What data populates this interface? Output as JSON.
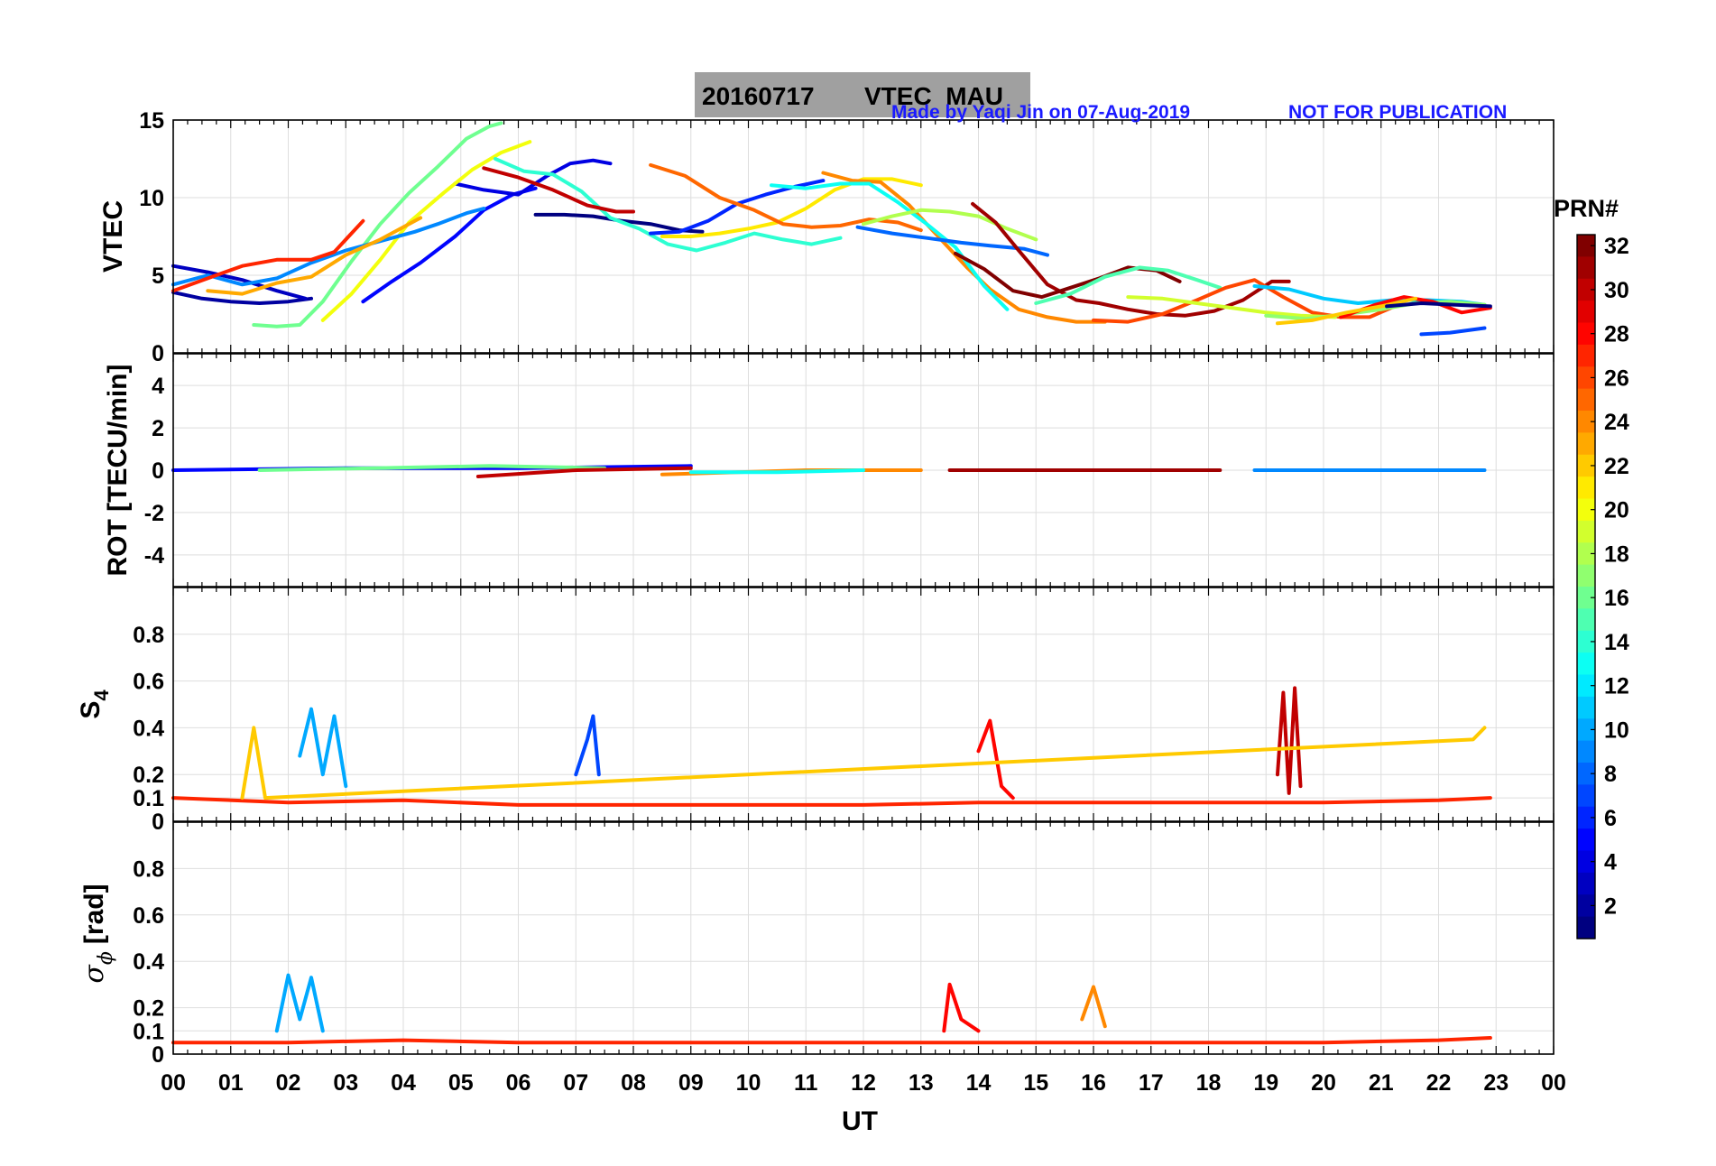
{
  "title": {
    "date": "20160717",
    "label": "VTEC  MAU",
    "author_note": "Made by Yaqi Jin on 07-Aug-2019",
    "pub_note": "NOT FOR PUBLICATION",
    "note_color": "#1a1aff",
    "box_color": "#a0a0a0"
  },
  "x_axis": {
    "label": "UT",
    "ticks": [
      "00",
      "01",
      "02",
      "03",
      "04",
      "05",
      "06",
      "07",
      "08",
      "09",
      "10",
      "11",
      "12",
      "13",
      "14",
      "15",
      "16",
      "17",
      "18",
      "19",
      "20",
      "21",
      "22",
      "23",
      "00"
    ],
    "range": [
      0,
      24
    ]
  },
  "colorbar": {
    "label": "PRN#",
    "ticks": [
      "32",
      "30",
      "28",
      "26",
      "24",
      "22",
      "20",
      "18",
      "16",
      "14",
      "12",
      "10",
      "8",
      "6",
      "4",
      "2"
    ],
    "range": [
      1,
      32
    ],
    "colormap": "jet"
  },
  "panels": [
    {
      "id": "vtec",
      "ylabel": "VTEC",
      "ylim": [
        0,
        15
      ],
      "yticks": [
        "0",
        "5",
        "10",
        "15"
      ],
      "ytick_values": [
        0,
        5,
        10,
        15
      ]
    },
    {
      "id": "rot",
      "ylabel": "ROT [TECU/min]",
      "ylim": [
        -5.5,
        5.5
      ],
      "yticks": [
        "-4",
        "-2",
        "0",
        "2",
        "4"
      ],
      "ytick_values": [
        -4,
        -2,
        0,
        2,
        4
      ]
    },
    {
      "id": "s4",
      "ylabel_main": "S",
      "ylabel_sub": "4",
      "ylim": [
        0,
        1
      ],
      "yticks": [
        "0",
        "0.1",
        "0.2",
        "0.4",
        "0.6",
        "0.8"
      ],
      "ytick_values": [
        0,
        0.1,
        0.2,
        0.4,
        0.6,
        0.8
      ]
    },
    {
      "id": "sigma",
      "ylabel_main": "σ",
      "ylabel_sub": "ϕ",
      "ylabel_unit": "[rad]",
      "ylim": [
        0,
        1
      ],
      "yticks": [
        "0",
        "0.1",
        "0.2",
        "0.4",
        "0.6",
        "0.8"
      ],
      "ytick_values": [
        0,
        0.1,
        0.2,
        0.4,
        0.6,
        0.8
      ]
    }
  ],
  "chart_data": {
    "type": "line",
    "title": "20160717    VTEC  MAU",
    "xlabel": "UT",
    "xlim": [
      0,
      24
    ],
    "series": [
      {
        "name": "2",
        "panel": "vtec",
        "x": [
          0.0,
          0.5,
          1.0,
          1.5,
          2.0,
          2.4
        ],
        "y": [
          3.9,
          3.5,
          3.3,
          3.2,
          3.3,
          3.5
        ]
      },
      {
        "name": "3",
        "panel": "vtec",
        "x": [
          0.0,
          0.6,
          1.2,
          1.8,
          2.3
        ],
        "y": [
          5.6,
          5.2,
          4.7,
          4.0,
          3.5
        ]
      },
      {
        "name": "5",
        "panel": "vtec",
        "x": [
          3.3,
          3.8,
          4.3,
          4.9,
          5.4,
          5.9,
          6.3
        ],
        "y": [
          3.3,
          4.6,
          5.8,
          7.5,
          9.2,
          10.2,
          10.6
        ]
      },
      {
        "name": "4",
        "panel": "vtec",
        "x": [
          4.9,
          5.4,
          6.0,
          6.5,
          6.9,
          7.3,
          7.6
        ],
        "y": [
          10.9,
          10.5,
          10.2,
          11.4,
          12.2,
          12.4,
          12.2
        ]
      },
      {
        "name": "1",
        "panel": "vtec",
        "x": [
          6.3,
          6.8,
          7.3,
          7.8,
          8.3,
          8.8,
          9.2
        ],
        "y": [
          8.9,
          8.9,
          8.8,
          8.5,
          8.3,
          7.9,
          7.8
        ]
      },
      {
        "name": "20",
        "panel": "vtec",
        "x": [
          2.6,
          3.1,
          3.6,
          4.1,
          4.7,
          5.2,
          5.7,
          6.2
        ],
        "y": [
          2.1,
          3.8,
          6.0,
          8.4,
          10.3,
          11.8,
          12.9,
          13.6
        ]
      },
      {
        "name": "16",
        "panel": "vtec",
        "x": [
          1.4,
          1.8,
          2.2,
          2.6,
          3.1,
          3.6,
          4.1,
          4.6,
          5.1,
          5.5,
          5.7
        ],
        "y": [
          1.8,
          1.7,
          1.8,
          3.3,
          5.9,
          8.3,
          10.3,
          12.0,
          13.8,
          14.6,
          14.8
        ]
      },
      {
        "name": "9",
        "panel": "vtec",
        "x": [
          0.0,
          0.6,
          1.2,
          1.8,
          2.4,
          3.0,
          3.6,
          4.2,
          4.6,
          5.1,
          5.4
        ],
        "y": [
          4.4,
          5.0,
          4.4,
          4.8,
          5.8,
          6.6,
          7.2,
          7.8,
          8.3,
          9.0,
          9.3
        ]
      },
      {
        "name": "27",
        "panel": "vtec",
        "x": [
          0.0,
          0.6,
          1.2,
          1.8,
          2.4,
          2.8,
          3.3
        ],
        "y": [
          4.0,
          4.8,
          5.6,
          6.0,
          6.0,
          6.5,
          8.5
        ]
      },
      {
        "name": "23",
        "panel": "vtec",
        "x": [
          0.6,
          1.2,
          1.8,
          2.4,
          3.0,
          3.6,
          4.3
        ],
        "y": [
          4.0,
          3.8,
          4.5,
          4.9,
          6.3,
          7.3,
          8.7
        ]
      },
      {
        "name": "14",
        "panel": "vtec",
        "x": [
          5.6,
          6.1,
          6.6,
          7.1,
          7.6,
          8.1,
          8.6,
          9.1,
          9.6,
          10.1,
          10.6,
          11.1,
          11.6
        ],
        "y": [
          12.5,
          11.7,
          11.5,
          10.4,
          8.7,
          8.0,
          7.0,
          6.6,
          7.1,
          7.7,
          7.3,
          7.0,
          7.4
        ]
      },
      {
        "name": "30",
        "panel": "vtec",
        "x": [
          5.4,
          6.0,
          6.6,
          7.2,
          7.7,
          8.0
        ],
        "y": [
          11.9,
          11.3,
          10.5,
          9.5,
          9.1,
          9.1
        ]
      },
      {
        "name": "21",
        "panel": "vtec",
        "x": [
          8.5,
          9.0,
          9.5,
          10.0,
          10.5,
          11.0,
          11.5,
          12.0,
          12.5,
          13.0
        ],
        "y": [
          7.5,
          7.5,
          7.7,
          8.0,
          8.4,
          9.3,
          10.5,
          11.2,
          11.2,
          10.8
        ]
      },
      {
        "name": "6",
        "panel": "vtec",
        "x": [
          8.3,
          8.8,
          9.3,
          9.8,
          10.3,
          10.8,
          11.3
        ],
        "y": [
          7.7,
          7.8,
          8.5,
          9.6,
          10.2,
          10.7,
          11.1
        ]
      },
      {
        "name": "25",
        "panel": "vtec",
        "x": [
          8.3,
          8.9,
          9.5,
          10.1,
          10.6,
          11.1,
          11.6,
          12.1,
          12.6,
          13.0
        ],
        "y": [
          12.1,
          11.4,
          10.0,
          9.2,
          8.3,
          8.1,
          8.2,
          8.6,
          8.4,
          7.9
        ]
      },
      {
        "name": "24",
        "panel": "vtec",
        "x": [
          11.3,
          11.8,
          12.3,
          12.8,
          13.3,
          13.8,
          14.2,
          14.7,
          15.2,
          15.7,
          16.2
        ],
        "y": [
          11.6,
          11.1,
          11.0,
          9.5,
          7.5,
          5.5,
          4.1,
          2.8,
          2.3,
          2.0,
          2.0
        ]
      },
      {
        "name": "13",
        "panel": "vtec",
        "x": [
          10.4,
          11.0,
          11.6,
          12.1,
          12.6,
          13.1,
          13.6,
          14.1,
          14.5
        ],
        "y": [
          10.8,
          10.6,
          10.9,
          10.9,
          9.7,
          8.3,
          6.8,
          4.3,
          2.8
        ]
      },
      {
        "name": "8",
        "panel": "vtec",
        "x": [
          11.9,
          12.5,
          13.1,
          13.7,
          14.2,
          14.8,
          15.2
        ],
        "y": [
          8.1,
          7.7,
          7.4,
          7.1,
          6.9,
          6.7,
          6.3
        ]
      },
      {
        "name": "18",
        "panel": "vtec",
        "x": [
          12.0,
          12.5,
          13.0,
          13.5,
          14.0,
          14.5,
          15.0
        ],
        "y": [
          8.3,
          8.8,
          9.2,
          9.1,
          8.8,
          8.0,
          7.3
        ]
      },
      {
        "name": "31",
        "panel": "vtec",
        "x": [
          13.9,
          14.3,
          14.7,
          15.2,
          15.7,
          16.1,
          16.6,
          17.1,
          17.6,
          18.1,
          18.6,
          19.1,
          19.4
        ],
        "y": [
          9.6,
          8.4,
          6.6,
          4.4,
          3.4,
          3.2,
          2.8,
          2.5,
          2.4,
          2.7,
          3.4,
          4.6,
          4.6
        ]
      },
      {
        "name": "32",
        "panel": "vtec",
        "x": [
          13.6,
          14.1,
          14.6,
          15.1,
          15.6,
          16.1,
          16.6,
          17.1,
          17.5
        ],
        "y": [
          6.4,
          5.4,
          4.0,
          3.6,
          4.2,
          4.8,
          5.5,
          5.3,
          4.6
        ]
      },
      {
        "name": "15",
        "panel": "vtec",
        "x": [
          15.0,
          15.6,
          16.2,
          16.8,
          17.3,
          17.8,
          18.2
        ],
        "y": [
          3.2,
          3.8,
          4.9,
          5.5,
          5.3,
          4.7,
          4.2
        ]
      },
      {
        "name": "26",
        "panel": "vtec",
        "x": [
          16.0,
          16.6,
          17.2,
          17.8,
          18.3,
          18.8,
          19.3,
          19.8,
          20.3,
          20.8,
          21.3
        ],
        "y": [
          2.1,
          2.0,
          2.5,
          3.4,
          4.2,
          4.7,
          3.6,
          2.6,
          2.3,
          2.3,
          3.1
        ]
      },
      {
        "name": "19",
        "panel": "vtec",
        "x": [
          16.6,
          17.2,
          17.8,
          18.4,
          19.0,
          19.6,
          20.2
        ],
        "y": [
          3.6,
          3.5,
          3.2,
          2.9,
          2.6,
          2.4,
          2.3
        ]
      },
      {
        "name": "11",
        "panel": "vtec",
        "x": [
          18.8,
          19.4,
          20.0,
          20.6,
          21.2,
          21.8,
          22.4,
          22.8
        ],
        "y": [
          4.3,
          4.1,
          3.5,
          3.2,
          3.4,
          3.4,
          3.3,
          3.1
        ]
      },
      {
        "name": "17",
        "panel": "vtec",
        "x": [
          19.0,
          19.7,
          20.4,
          21.0,
          21.6,
          22.2,
          22.8
        ],
        "y": [
          2.4,
          2.2,
          2.5,
          2.8,
          3.2,
          3.3,
          3.1
        ]
      },
      {
        "name": "7",
        "panel": "vtec",
        "x": [
          21.7,
          22.2,
          22.8
        ],
        "y": [
          1.2,
          1.3,
          1.6
        ]
      },
      {
        "name": "28",
        "panel": "vtec",
        "x": [
          20.3,
          20.9,
          21.4,
          21.9,
          22.4,
          22.9
        ],
        "y": [
          2.3,
          3.1,
          3.6,
          3.3,
          2.6,
          2.9
        ]
      },
      {
        "name": "22",
        "panel": "vtec",
        "x": [
          19.2,
          19.8,
          20.4,
          21.0,
          21.6
        ],
        "y": [
          1.9,
          2.1,
          2.6,
          3.0,
          3.5
        ]
      },
      {
        "name": "1",
        "panel": "vtec",
        "x": [
          21.1,
          21.7,
          22.3,
          22.9
        ],
        "y": [
          3.0,
          3.2,
          3.1,
          3.0
        ]
      },
      {
        "name": "5",
        "panel": "rot",
        "x": [
          0.0,
          3.0,
          6.0,
          9.0
        ],
        "y": [
          0.0,
          0.1,
          0.1,
          0.2
        ]
      },
      {
        "name": "16",
        "panel": "rot",
        "x": [
          1.5,
          3.5,
          5.5,
          7.5
        ],
        "y": [
          0.0,
          0.1,
          0.2,
          0.1
        ]
      },
      {
        "name": "30",
        "panel": "rot",
        "x": [
          5.3,
          7.0,
          9.0
        ],
        "y": [
          -0.3,
          0.0,
          0.1
        ]
      },
      {
        "name": "24",
        "panel": "rot",
        "x": [
          8.5,
          11.0,
          13.0
        ],
        "y": [
          -0.2,
          0.0,
          0.0
        ]
      },
      {
        "name": "13",
        "panel": "rot",
        "x": [
          9.0,
          10.5,
          12.0
        ],
        "y": [
          -0.1,
          -0.1,
          0.0
        ]
      },
      {
        "name": "31",
        "panel": "rot",
        "x": [
          13.5,
          16.0,
          18.2
        ],
        "y": [
          0.0,
          0.0,
          0.0
        ]
      },
      {
        "name": "9",
        "panel": "rot",
        "x": [
          18.8,
          20.5,
          22.8
        ],
        "y": [
          0.0,
          0.0,
          0.0
        ]
      },
      {
        "name": "27",
        "panel": "s4",
        "x": [
          0.0,
          2.0,
          4.0,
          6.0,
          8.0,
          10.0,
          12.0,
          14.0,
          16.0,
          18.0,
          20.0,
          22.0,
          22.9
        ],
        "y": [
          0.1,
          0.08,
          0.09,
          0.07,
          0.07,
          0.07,
          0.07,
          0.08,
          0.08,
          0.08,
          0.08,
          0.09,
          0.1
        ]
      },
      {
        "name": "10",
        "panel": "s4",
        "x": [
          2.2,
          2.4,
          2.6,
          2.8,
          3.0
        ],
        "y": [
          0.28,
          0.48,
          0.2,
          0.45,
          0.15
        ]
      },
      {
        "name": "7",
        "panel": "s4",
        "x": [
          7.0,
          7.2,
          7.3,
          7.4
        ],
        "y": [
          0.2,
          0.35,
          0.45,
          0.2
        ]
      },
      {
        "name": "30",
        "panel": "s4",
        "x": [
          19.2,
          19.3,
          19.4,
          19.5,
          19.6
        ],
        "y": [
          0.2,
          0.55,
          0.12,
          0.57,
          0.15
        ]
      },
      {
        "name": "28",
        "panel": "s4",
        "x": [
          14.0,
          14.2,
          14.4,
          14.6
        ],
        "y": [
          0.3,
          0.43,
          0.15,
          0.1
        ]
      },
      {
        "name": "22",
        "panel": "s4",
        "x": [
          1.2,
          1.4,
          1.6,
          22.6,
          22.8
        ],
        "y": [
          0.1,
          0.4,
          0.1,
          0.35,
          0.4
        ]
      },
      {
        "name": "27",
        "panel": "sigma",
        "x": [
          0.0,
          2.0,
          4.0,
          6.0,
          8.0,
          10.0,
          12.0,
          14.0,
          16.0,
          18.0,
          20.0,
          22.0,
          22.9
        ],
        "y": [
          0.05,
          0.05,
          0.06,
          0.05,
          0.05,
          0.05,
          0.05,
          0.05,
          0.05,
          0.05,
          0.05,
          0.06,
          0.07
        ]
      },
      {
        "name": "10",
        "panel": "sigma",
        "x": [
          1.8,
          2.0,
          2.2,
          2.4,
          2.6
        ],
        "y": [
          0.1,
          0.34,
          0.15,
          0.33,
          0.1
        ]
      },
      {
        "name": "28",
        "panel": "sigma",
        "x": [
          13.4,
          13.5,
          13.7,
          14.0
        ],
        "y": [
          0.1,
          0.3,
          0.15,
          0.1
        ]
      },
      {
        "name": "24",
        "panel": "sigma",
        "x": [
          15.8,
          16.0,
          16.2
        ],
        "y": [
          0.15,
          0.29,
          0.12
        ]
      }
    ]
  }
}
